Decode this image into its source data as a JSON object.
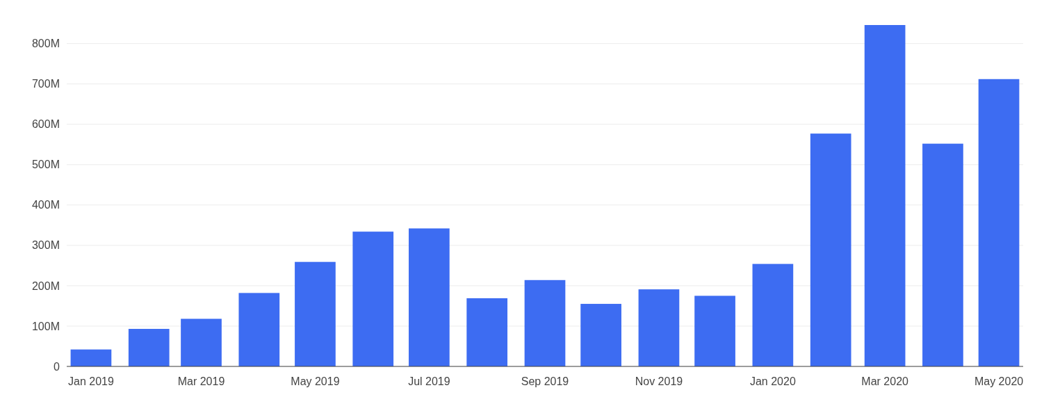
{
  "chart_data": {
    "type": "bar",
    "x": [
      "2019-01",
      "2019-02",
      "2019-03",
      "2019-04",
      "2019-05",
      "2019-06",
      "2019-07",
      "2019-08",
      "2019-09",
      "2019-10",
      "2019-11",
      "2019-12",
      "2020-01",
      "2020-02",
      "2020-03",
      "2020-04",
      "2020-05"
    ],
    "values": [
      42,
      93,
      118,
      182,
      259,
      334,
      342,
      169,
      214,
      155,
      191,
      175,
      254,
      577,
      846,
      552,
      712
    ],
    "color": "#3d6cf2",
    "xlim": [
      "2018-12-19",
      "2020-05-14"
    ],
    "xticks": [
      {
        "value": "2019-01",
        "label": "Jan 2019"
      },
      {
        "value": "2019-03",
        "label": "Mar 2019"
      },
      {
        "value": "2019-05",
        "label": "May 2019"
      },
      {
        "value": "2019-07",
        "label": "Jul 2019"
      },
      {
        "value": "2019-09",
        "label": "Sep 2019"
      },
      {
        "value": "2019-11",
        "label": "Nov 2019"
      },
      {
        "value": "2020-01",
        "label": "Jan 2020"
      },
      {
        "value": "2020-03",
        "label": "Mar 2020"
      },
      {
        "value": "2020-05",
        "label": "May 2020"
      }
    ],
    "yticks": [
      0,
      {
        "value": 100,
        "label": "100M"
      },
      {
        "value": 200,
        "label": "200M"
      },
      {
        "value": 300,
        "label": "300M"
      },
      {
        "value": 400,
        "label": "400M"
      },
      {
        "value": 500,
        "label": "500M"
      },
      {
        "value": 600,
        "label": "600M"
      },
      {
        "value": 700,
        "label": "700M"
      },
      {
        "value": 800,
        "label": "800M"
      }
    ],
    "ylim": [
      0,
      846
    ],
    "grid": "y"
  }
}
